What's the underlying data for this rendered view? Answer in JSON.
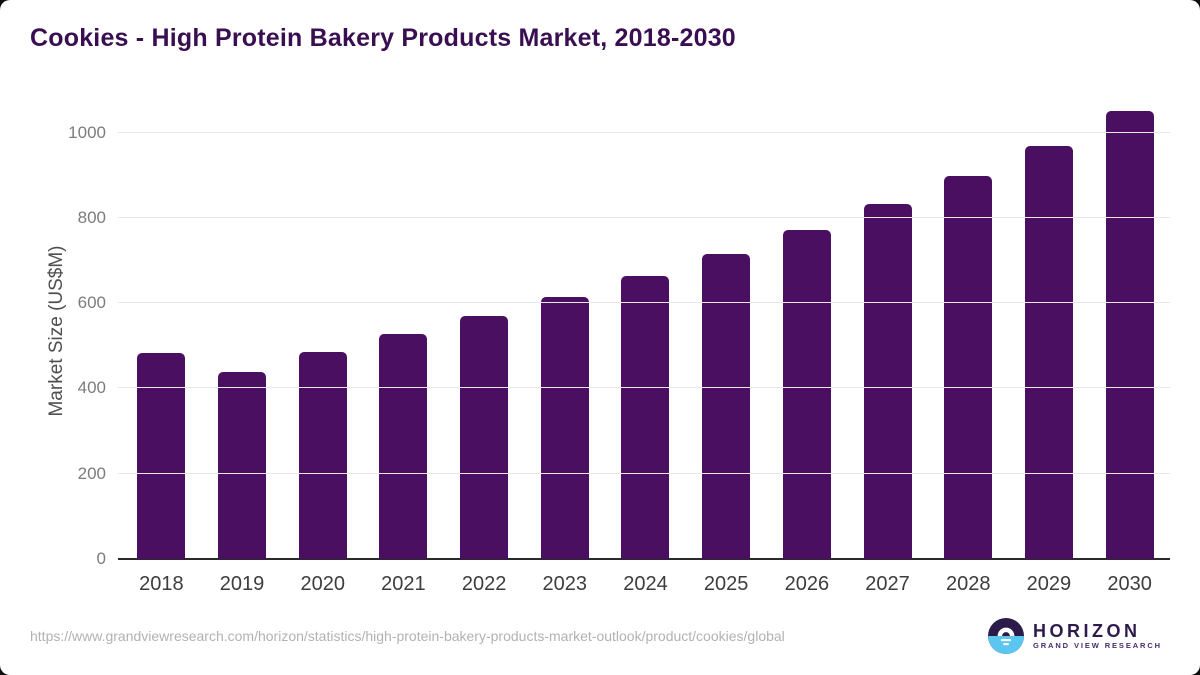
{
  "title": "Cookies - High Protein Bakery Products Market, 2018-2030",
  "chart_data": {
    "type": "bar",
    "title": "Cookies - High Protein Bakery Products Market, 2018-2030",
    "xlabel": "",
    "ylabel": "Market Size (US$M)",
    "categories": [
      "2018",
      "2019",
      "2020",
      "2021",
      "2022",
      "2023",
      "2024",
      "2025",
      "2026",
      "2027",
      "2028",
      "2029",
      "2030"
    ],
    "values": [
      483,
      439,
      486,
      527,
      570,
      615,
      663,
      716,
      771,
      833,
      898,
      968,
      1050
    ],
    "yticks": [
      0,
      200,
      400,
      600,
      800,
      1000
    ],
    "ylim": [
      0,
      1079
    ],
    "grid": "horizontal",
    "legend": "none"
  },
  "colors": {
    "bar": "#4a0f60",
    "title": "#3a0f52",
    "gridline": "#e8e8e8",
    "axis_line": "#2a2a2a",
    "y_tick_label": "#7c7c7c",
    "x_tick_label": "#3d3d3d",
    "logo_dark": "#2b1b4a",
    "logo_blue": "#5bc7f1"
  },
  "footer": {
    "source_url": "https://www.grandviewresearch.com/horizon/statistics/high-protein-bakery-products-market-outlook/product/cookies/global",
    "logo": {
      "title": "HORIZON",
      "subtitle": "GRAND VIEW RESEARCH"
    }
  }
}
